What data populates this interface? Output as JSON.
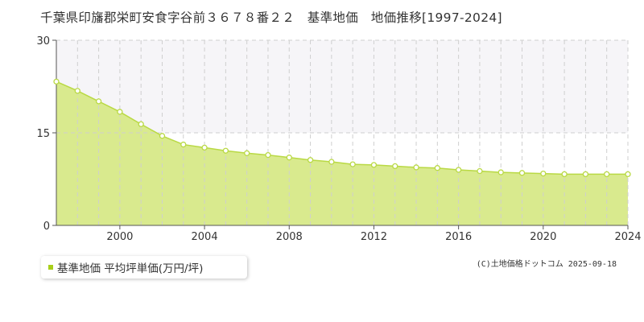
{
  "title": "千葉県印旛郡栄町安食字谷前３６７８番２２　基準地価　地価推移[1997-2024]",
  "legend": {
    "label": "基準地価 平均坪単価(万円/坪)",
    "color": "#a8cf1a"
  },
  "credit": "(C)土地価格ドットコム 2025-09-18",
  "colors": {
    "area_fill": "#d9ea8e",
    "line": "#b9d944",
    "point_fill": "#ffffff",
    "band": "#f6f5f8",
    "grid": "#cfcfcf"
  },
  "chart_data": {
    "type": "area",
    "x": [
      1997,
      1998,
      1999,
      2000,
      2001,
      2002,
      2003,
      2004,
      2005,
      2006,
      2007,
      2008,
      2009,
      2010,
      2011,
      2012,
      2013,
      2014,
      2015,
      2016,
      2017,
      2018,
      2019,
      2020,
      2021,
      2022,
      2023,
      2024
    ],
    "series": [
      {
        "name": "基準地価 平均坪単価(万円/坪)",
        "values": [
          23.3,
          21.8,
          20.1,
          18.4,
          16.4,
          14.5,
          13.1,
          12.6,
          12.1,
          11.7,
          11.4,
          11.0,
          10.6,
          10.3,
          9.9,
          9.8,
          9.6,
          9.4,
          9.3,
          9.0,
          8.8,
          8.6,
          8.5,
          8.4,
          8.3,
          8.3,
          8.3,
          8.3
        ]
      }
    ],
    "xlim": [
      1997,
      2024
    ],
    "ylim": [
      0,
      30
    ],
    "yticks": [
      0,
      15,
      30
    ],
    "xticks": [
      2000,
      2004,
      2008,
      2012,
      2016,
      2020,
      2024
    ],
    "xlabel": "",
    "ylabel": "",
    "grid": true,
    "legend_position": "bottom-left"
  }
}
